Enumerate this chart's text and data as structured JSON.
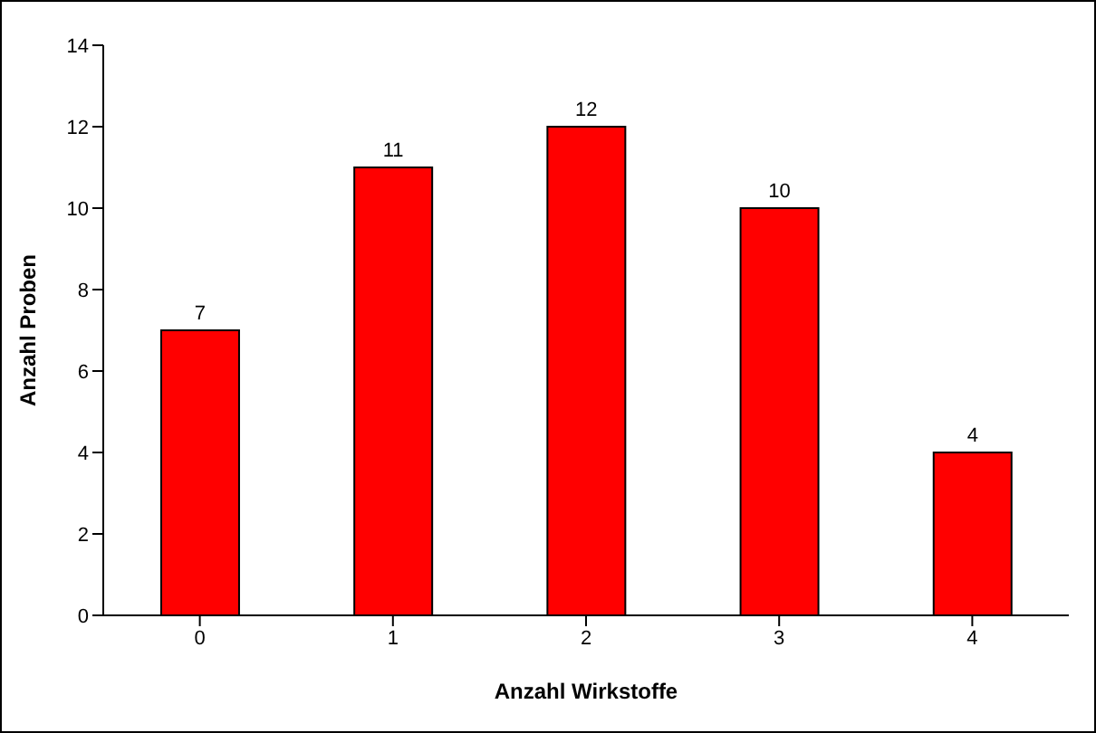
{
  "chart_data": {
    "type": "bar",
    "xlabel": "Anzahl Wirkstoffe",
    "ylabel": "Anzahl Proben",
    "categories": [
      "0",
      "1",
      "2",
      "3",
      "4"
    ],
    "values": [
      7,
      11,
      12,
      10,
      4
    ],
    "color": "#ff0000",
    "ylim": [
      0,
      14
    ],
    "yticks": [
      0,
      2,
      4,
      6,
      8,
      10,
      12,
      14
    ],
    "grid": false,
    "data_labels": true,
    "legend": false
  }
}
